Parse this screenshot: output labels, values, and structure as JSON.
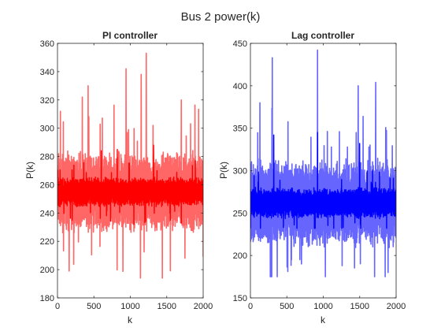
{
  "figure": {
    "title": "Bus 2 power(k)"
  },
  "chart_data": [
    {
      "type": "line",
      "title": "PI controller",
      "xlabel": "k",
      "ylabel": "P(k)",
      "xlim": [
        0,
        2000
      ],
      "ylim": [
        180,
        360
      ],
      "xticks": [
        0,
        500,
        1000,
        1500,
        2000
      ],
      "yticks": [
        180,
        200,
        220,
        240,
        260,
        280,
        300,
        320,
        340,
        360
      ],
      "grid": false,
      "series": [
        {
          "color": "#ff6666",
          "center": 255,
          "spread": 22,
          "min": 194,
          "max": 353,
          "peaks": [
            [
              1220,
              353
            ],
            [
              940,
              342
            ],
            [
              1150,
              338
            ],
            [
              340,
              322
            ],
            [
              420,
              330
            ],
            [
              40,
              312
            ],
            [
              1440,
              194
            ],
            [
              160,
              199
            ],
            [
              1700,
              320
            ]
          ]
        },
        {
          "color": "#ff0000",
          "center": 255,
          "spread": 8,
          "min": 232,
          "max": 288,
          "peaks": [
            [
              820,
              285
            ],
            [
              1320,
              288
            ],
            [
              600,
              284
            ],
            [
              1050,
              232
            ],
            [
              1550,
              235
            ]
          ]
        }
      ]
    },
    {
      "type": "line",
      "title": "Lag controller",
      "xlabel": "k",
      "ylabel": "P(k)",
      "xlim": [
        0,
        2000
      ],
      "ylim": [
        150,
        450
      ],
      "xticks": [
        0,
        500,
        1000,
        1500,
        2000
      ],
      "yticks": [
        150,
        200,
        250,
        300,
        350,
        400,
        450
      ],
      "grid": false,
      "series": [
        {
          "color": "#6666ff",
          "center": 262,
          "spread": 40,
          "min": 175,
          "max": 442,
          "peaks": [
            [
              920,
              442
            ],
            [
              300,
              433
            ],
            [
              1480,
              400
            ],
            [
              1720,
              404
            ],
            [
              130,
              380
            ],
            [
              1890,
              180
            ],
            [
              1260,
              188
            ],
            [
              700,
              190
            ]
          ]
        },
        {
          "color": "#0000ff",
          "center": 262,
          "spread": 14,
          "min": 232,
          "max": 345,
          "peaks": [
            [
              320,
              342
            ],
            [
              920,
              345
            ],
            [
              1500,
              332
            ],
            [
              600,
              236
            ]
          ]
        }
      ]
    }
  ]
}
